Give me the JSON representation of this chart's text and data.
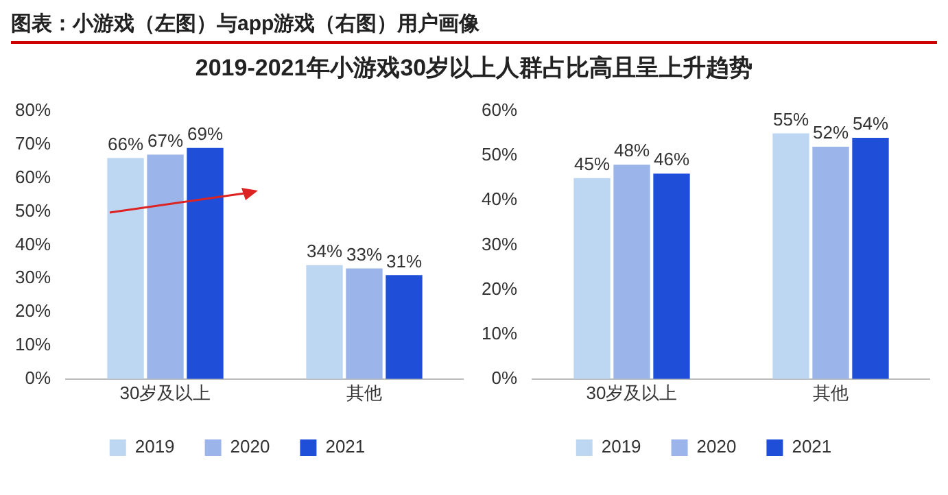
{
  "chart_data": [
    {
      "type": "bar",
      "title": "图表：小游戏（左图）与app游戏（右图）用户画像",
      "subtitle": "2019-2021年小游戏30岁以上人群占比高且呈上升趋势",
      "categories": [
        "30岁及以上",
        "其他"
      ],
      "series": [
        {
          "name": "2019",
          "color": "#bdd7f3",
          "values": [
            66,
            34
          ],
          "value_labels": [
            "66%",
            "34%"
          ]
        },
        {
          "name": "2020",
          "color": "#9bb5ea",
          "values": [
            67,
            33
          ],
          "value_labels": [
            "67%",
            "33%"
          ]
        },
        {
          "name": "2021",
          "color": "#1f4fd8",
          "values": [
            69,
            31
          ],
          "value_labels": [
            "69%",
            "31%"
          ]
        }
      ],
      "ylim": [
        0,
        80
      ],
      "yticks": [
        {
          "value": 0,
          "label": "0%"
        },
        {
          "value": 10,
          "label": "10%"
        },
        {
          "value": 20,
          "label": "20%"
        },
        {
          "value": 30,
          "label": "30%"
        },
        {
          "value": 40,
          "label": "40%"
        },
        {
          "value": 50,
          "label": "50%"
        },
        {
          "value": 60,
          "label": "60%"
        },
        {
          "value": 70,
          "label": "70%"
        },
        {
          "value": 80,
          "label": "80%"
        }
      ],
      "legend": "bottom"
    },
    {
      "type": "bar",
      "categories": [
        "30岁及以上",
        "其他"
      ],
      "series": [
        {
          "name": "2019",
          "color": "#bdd7f3",
          "values": [
            45,
            55
          ],
          "value_labels": [
            "45%",
            "55%"
          ]
        },
        {
          "name": "2020",
          "color": "#9bb5ea",
          "values": [
            48,
            52
          ],
          "value_labels": [
            "48%",
            "52%"
          ]
        },
        {
          "name": "2021",
          "color": "#1f4fd8",
          "values": [
            46,
            54
          ],
          "value_labels": [
            "46%",
            "54%"
          ]
        }
      ],
      "ylim": [
        0,
        60
      ],
      "yticks": [
        {
          "value": 0,
          "label": "0%"
        },
        {
          "value": 10,
          "label": "10%"
        },
        {
          "value": 20,
          "label": "20%"
        },
        {
          "value": 30,
          "label": "30%"
        },
        {
          "value": 40,
          "label": "40%"
        },
        {
          "value": 50,
          "label": "50%"
        },
        {
          "value": 60,
          "label": "60%"
        }
      ],
      "legend": "bottom"
    }
  ]
}
